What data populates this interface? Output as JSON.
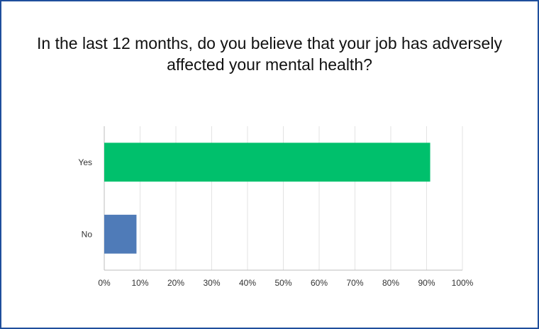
{
  "colors": {
    "border": "#1f4e9c",
    "grid": "#e3e3e3",
    "axis": "#bdbdbd",
    "text": "#333333"
  },
  "chart_data": {
    "type": "bar",
    "orientation": "horizontal",
    "title_lines": [
      "In the last 12 months, do you believe that your job has adversely",
      "affected your mental health?"
    ],
    "categories": [
      "Yes",
      "No"
    ],
    "values": [
      91,
      9
    ],
    "colors": [
      "#00c06c",
      "#4f7bb8"
    ],
    "xlim": [
      0,
      100
    ],
    "x_ticks": [
      "0%",
      "10%",
      "20%",
      "30%",
      "40%",
      "50%",
      "60%",
      "70%",
      "80%",
      "90%",
      "100%"
    ],
    "grid": true,
    "xlabel": "",
    "ylabel": ""
  }
}
